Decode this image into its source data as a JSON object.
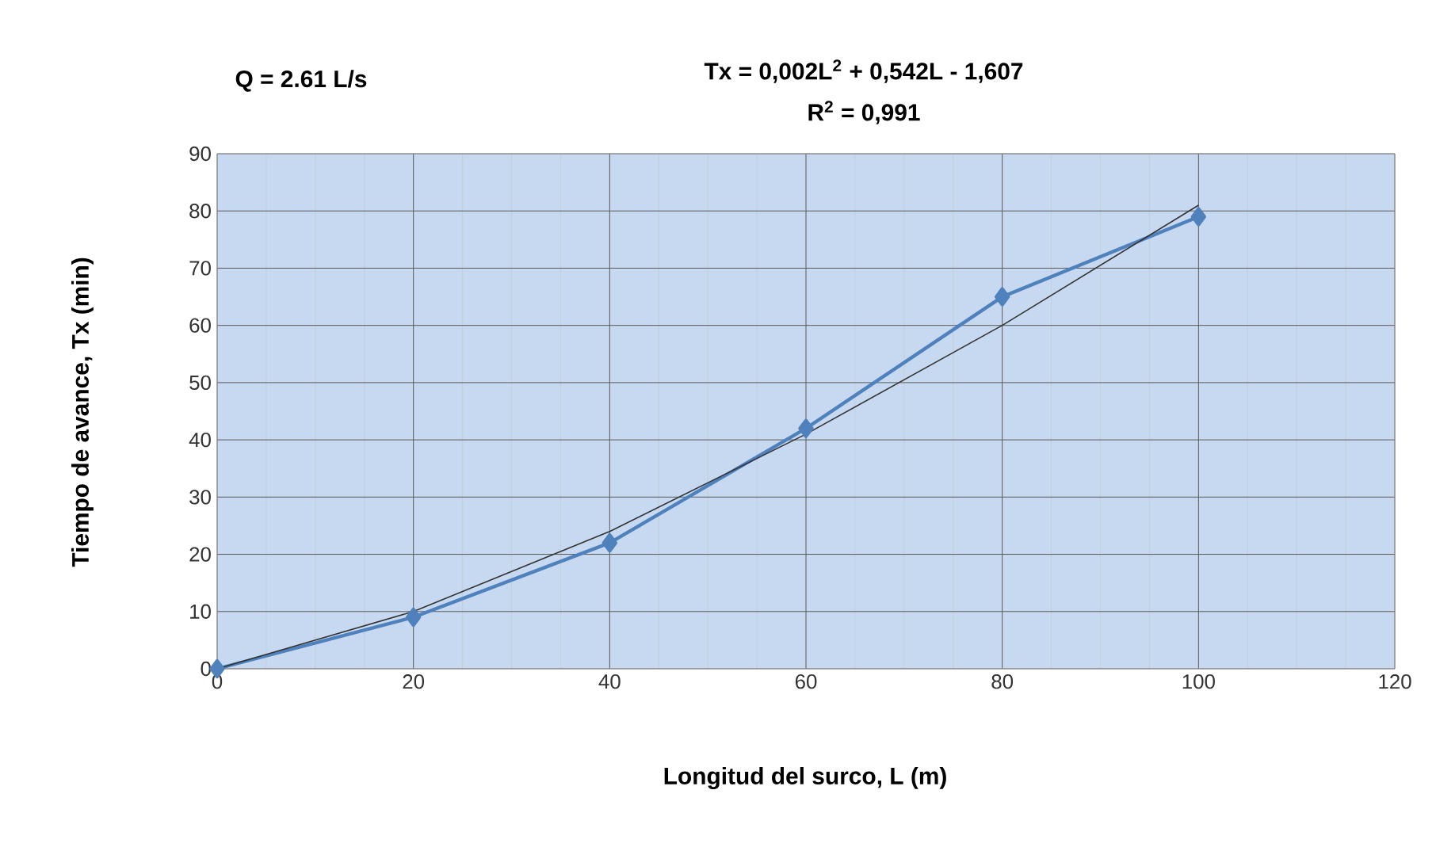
{
  "chart_data": {
    "type": "line",
    "xlabel": "Longitud del surco, L (m)",
    "ylabel": "Tiempo de avance, Tx (min)",
    "annotations": [
      "Q = 2.61 L/s",
      "Tx = 0,002L$^{2}$ + 0,542L - 1,607",
      "R$^{2}$ = 0,991"
    ],
    "x": [
      0,
      20,
      40,
      60,
      80,
      100
    ],
    "series": [
      {
        "color": "#4f81bd",
        "values": [
          0,
          9,
          22,
          42,
          65,
          79
        ],
        "marker": "diamond"
      },
      {
        "type": "line",
        "color": "#333333",
        "x": [
          0,
          20,
          40,
          60,
          80,
          100
        ],
        "values": [
          0,
          10,
          24,
          41,
          60,
          81
        ],
        "marker": "none"
      }
    ],
    "xlim": [
      0,
      120
    ],
    "xticks": [
      0,
      20,
      40,
      60,
      80,
      100,
      120
    ],
    "ylim": [
      0,
      90
    ],
    "yticks": [
      0,
      10,
      20,
      30,
      40,
      50,
      60,
      70,
      80,
      90
    ],
    "grid": true
  }
}
